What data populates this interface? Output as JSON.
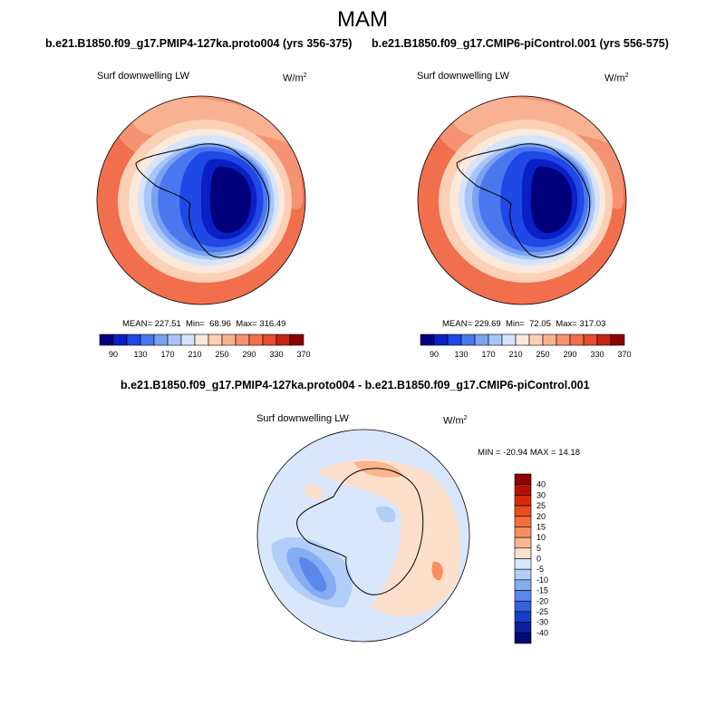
{
  "figure_title": "MAM",
  "panels": [
    {
      "case_title": "b.e21.B1850.f09_g17.PMIP4-127ka.proto004 (yrs 356-375)",
      "variable": "Surf downwelling LW",
      "units_base": "W/m",
      "units_exp": "2",
      "stats": {
        "mean_label": "MEAN=",
        "mean": "227.51",
        "min_label": "Min=",
        "min": "68.96",
        "max_label": "Max=",
        "max": "316.49"
      }
    },
    {
      "case_title": "b.e21.B1850.f09_g17.CMIP6-piControl.001 (yrs 556-575)",
      "variable": "Surf downwelling LW",
      "units_base": "W/m",
      "units_exp": "2",
      "stats": {
        "mean_label": "MEAN=",
        "mean": "229.69",
        "min_label": "Min=",
        "min": "72.05",
        "max_label": "Max=",
        "max": "317.03"
      }
    },
    {
      "case_title": "b.e21.B1850.f09_g17.PMIP4-127ka.proto004 - b.e21.B1850.f09_g17.CMIP6-piControl.001",
      "variable": "Surf downwelling LW",
      "units_base": "W/m",
      "units_exp": "2",
      "stats_text": "MIN = -20.94 MAX =  14.18"
    }
  ],
  "colorbar_abs": {
    "labels": [
      "90",
      "130",
      "170",
      "210",
      "250",
      "290",
      "330",
      "370"
    ],
    "colors": [
      "#00007c",
      "#0a1fc4",
      "#1f48e6",
      "#4a77ee",
      "#7aa2f2",
      "#a8c5f6",
      "#d5e4fa",
      "#fbe9dc",
      "#fbd0b5",
      "#f8b292",
      "#f59272",
      "#f26f4e",
      "#e84b2e",
      "#c72414",
      "#8b0000"
    ]
  },
  "colorbar_diff": {
    "labels": [
      "40",
      "30",
      "25",
      "20",
      "15",
      "10",
      "5",
      "0",
      "-5",
      "-10",
      "-15",
      "-20",
      "-25",
      "-30",
      "-40"
    ],
    "colors": [
      "#8b0000",
      "#b81000",
      "#d82a0a",
      "#ee4c1c",
      "#f56d3d",
      "#f88f62",
      "#fbb48e",
      "#fde0cc",
      "#d8e7fb",
      "#b2cdf7",
      "#86acf2",
      "#5c88ec",
      "#3461e2",
      "#143fca",
      "#0a209c",
      "#000a73"
    ]
  }
}
